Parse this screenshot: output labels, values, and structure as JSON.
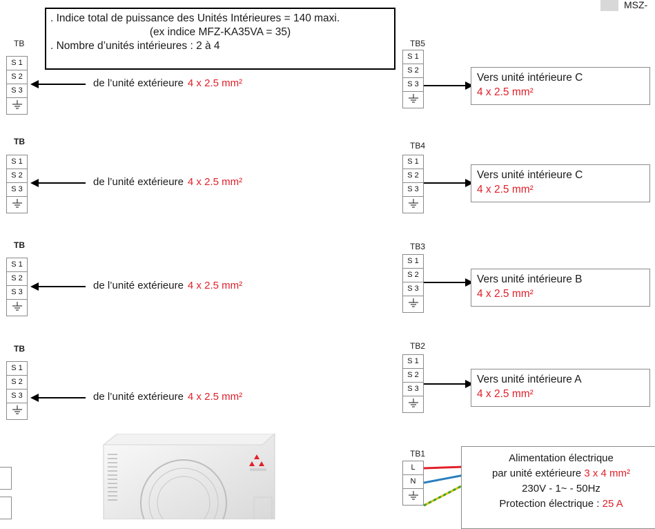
{
  "header_note": {
    "line1": ". Indice total de puissance des Unités Intérieures = 140 maxi.",
    "line2": "(ex indice MFZ-KA35VA = 35)",
    "line3": ". Nombre d’unités intérieures : 2 à 4"
  },
  "model_tag": "MSZ-",
  "left_blocks": [
    {
      "title": "TB",
      "cells": [
        "S 1",
        "S 2",
        "S 3"
      ],
      "wire_text": "de l’unité extérieure",
      "wire_spec": "4 x 2.5 mm²"
    },
    {
      "title": "TB",
      "cells": [
        "S 1",
        "S 2",
        "S 3"
      ],
      "wire_text": "de l’unité extérieure",
      "wire_spec": "4 x 2.5 mm²"
    },
    {
      "title": "TB",
      "cells": [
        "S 1",
        "S 2",
        "S 3"
      ],
      "wire_text": "de l’unité extérieure",
      "wire_spec": "4 x 2.5 mm²"
    },
    {
      "title": "TB",
      "cells": [
        "S 1",
        "S 2",
        "S 3"
      ],
      "wire_text": "de l’unité extérieure",
      "wire_spec": "4 x 2.5 mm²"
    }
  ],
  "right_blocks": [
    {
      "title": "TB5",
      "cells": [
        "S 1",
        "S 2",
        "S 3"
      ],
      "dest": "Vers unité intérieure C",
      "spec": "4 x 2.5 mm²"
    },
    {
      "title": "TB4",
      "cells": [
        "S 1",
        "S 2",
        "S 3"
      ],
      "dest": "Vers unité intérieure C",
      "spec": "4 x 2.5 mm²"
    },
    {
      "title": "TB3",
      "cells": [
        "S 1",
        "S 2",
        "S 3"
      ],
      "dest": "Vers unité intérieure B",
      "spec": "4 x 2.5 mm²"
    },
    {
      "title": "TB2",
      "cells": [
        "S 1",
        "S 2",
        "S 3"
      ],
      "dest": "Vers unité intérieure A",
      "spec": "4 x 2.5 mm²"
    }
  ],
  "power_block": {
    "title": "TB1",
    "cells": [
      "L",
      "N"
    ],
    "line1": "Alimentation électrique",
    "line2_text": "par unité extérieure",
    "line2_spec": "3 x 4 mm²",
    "line3": "230V - 1~ - 50Hz",
    "line4_text": "Protection électrique :",
    "line4_spec": "25 A",
    "wire_colors": {
      "L": "#e0202a",
      "N": "#2a7fc0",
      "earth": "#d8c400"
    }
  },
  "colors": {
    "accent_red": "#e0202a",
    "border": "#8a8a8a"
  }
}
